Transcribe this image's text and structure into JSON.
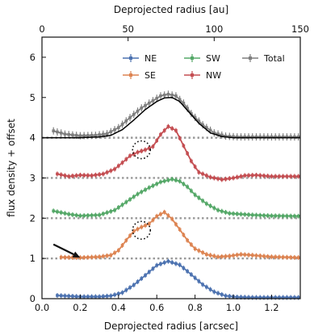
{
  "chart_data": {
    "type": "line",
    "xlabel": "Deprojected radius [arcsec]",
    "xlabel_top": "Deprojected radius [au]",
    "ylabel": "flux density + offset",
    "xlim": [
      0.0,
      1.35
    ],
    "ylim": [
      0,
      6.5
    ],
    "top_xlim": [
      0,
      150
    ],
    "xticks": [
      0.0,
      0.2,
      0.4,
      0.6,
      0.8,
      1.0,
      1.2
    ],
    "xtick_labels": [
      "0.0",
      "0.2",
      "0.4",
      "0.6",
      "0.8",
      "1.0",
      "1.2"
    ],
    "yticks": [
      0,
      1,
      2,
      3,
      4,
      5,
      6
    ],
    "ytick_labels": [
      "0",
      "1",
      "2",
      "3",
      "4",
      "5",
      "6"
    ],
    "top_ticks": [
      0,
      50,
      100,
      150
    ],
    "top_tick_labels": [
      "0",
      "50",
      "100",
      "150"
    ],
    "legend_position": "top-right",
    "baselines": [
      1,
      2,
      3,
      4
    ],
    "series": [
      {
        "name": "NE",
        "color": "#4c72b0",
        "offset": 0,
        "x": [
          0.08,
          0.2,
          0.3,
          0.36,
          0.42,
          0.48,
          0.54,
          0.6,
          0.66,
          0.72,
          0.78,
          0.84,
          0.9,
          0.96,
          1.02,
          1.1,
          1.2,
          1.35
        ],
        "y": [
          0.08,
          0.05,
          0.05,
          0.07,
          0.15,
          0.34,
          0.58,
          0.83,
          0.93,
          0.84,
          0.6,
          0.35,
          0.17,
          0.07,
          0.04,
          0.03,
          0.03,
          0.03
        ]
      },
      {
        "name": "SE",
        "color": "#dd8452",
        "offset": 1,
        "x": [
          0.1,
          0.2,
          0.3,
          0.36,
          0.4,
          0.44,
          0.48,
          0.52,
          0.56,
          0.6,
          0.64,
          0.68,
          0.72,
          0.76,
          0.8,
          0.86,
          0.92,
          0.98,
          1.04,
          1.1,
          1.2,
          1.35
        ],
        "y": [
          0.03,
          0.02,
          0.04,
          0.08,
          0.2,
          0.45,
          0.68,
          0.78,
          0.86,
          1.05,
          1.15,
          0.98,
          0.72,
          0.45,
          0.24,
          0.1,
          0.04,
          0.06,
          0.1,
          0.08,
          0.04,
          0.02
        ]
      },
      {
        "name": "SW",
        "color": "#55a868",
        "offset": 2,
        "x": [
          0.06,
          0.14,
          0.2,
          0.3,
          0.38,
          0.44,
          0.5,
          0.56,
          0.62,
          0.68,
          0.72,
          0.76,
          0.8,
          0.86,
          0.92,
          0.98,
          1.04,
          1.1,
          1.2,
          1.35
        ],
        "y": [
          0.18,
          0.1,
          0.06,
          0.08,
          0.2,
          0.4,
          0.6,
          0.76,
          0.9,
          0.97,
          0.92,
          0.78,
          0.58,
          0.36,
          0.2,
          0.12,
          0.1,
          0.08,
          0.06,
          0.05
        ]
      },
      {
        "name": "NW",
        "color": "#c44e52",
        "offset": 3,
        "x": [
          0.08,
          0.14,
          0.2,
          0.26,
          0.32,
          0.38,
          0.42,
          0.46,
          0.5,
          0.54,
          0.58,
          0.62,
          0.66,
          0.7,
          0.74,
          0.78,
          0.82,
          0.88,
          0.94,
          1.0,
          1.06,
          1.12,
          1.2,
          1.28,
          1.35
        ],
        "y": [
          0.1,
          0.04,
          0.07,
          0.06,
          0.1,
          0.22,
          0.38,
          0.55,
          0.64,
          0.7,
          0.78,
          1.08,
          1.28,
          1.18,
          0.8,
          0.42,
          0.14,
          0.02,
          -0.04,
          0.0,
          0.06,
          0.07,
          0.04,
          0.04,
          0.04
        ]
      },
      {
        "name": "Total",
        "color": "#7f7f7f",
        "offset": 4,
        "x": [
          0.06,
          0.12,
          0.2,
          0.28,
          0.34,
          0.4,
          0.46,
          0.52,
          0.58,
          0.62,
          0.66,
          0.7,
          0.74,
          0.78,
          0.84,
          0.9,
          0.96,
          1.02,
          1.1,
          1.2,
          1.35
        ],
        "y": [
          0.17,
          0.09,
          0.05,
          0.06,
          0.1,
          0.25,
          0.5,
          0.74,
          0.92,
          1.04,
          1.08,
          1.04,
          0.86,
          0.6,
          0.32,
          0.12,
          0.04,
          0.02,
          0.02,
          0.02,
          0.02
        ]
      }
    ],
    "model_curve": {
      "color": "#000000",
      "offset": 4,
      "x": [
        0.0,
        0.2,
        0.3,
        0.36,
        0.42,
        0.48,
        0.54,
        0.6,
        0.64,
        0.68,
        0.72,
        0.76,
        0.82,
        0.88,
        0.94,
        1.0,
        1.35
      ],
      "y": [
        0.0,
        0.0,
        0.02,
        0.06,
        0.2,
        0.44,
        0.7,
        0.9,
        0.99,
        1.0,
        0.9,
        0.68,
        0.36,
        0.12,
        0.03,
        0.0,
        0.0
      ]
    },
    "annotations": [
      {
        "type": "dotted-circle",
        "x": 0.52,
        "y": 3.7
      },
      {
        "type": "dotted-circle",
        "x": 0.52,
        "y": 1.7
      },
      {
        "type": "arrow",
        "from": [
          0.06,
          1.35
        ],
        "to": [
          0.2,
          1.02
        ]
      }
    ]
  }
}
